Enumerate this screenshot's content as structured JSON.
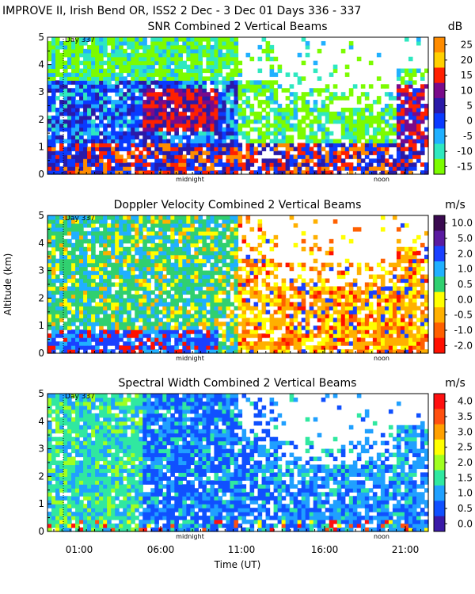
{
  "header": "IMPROVE II,  Irish Bend OR, ISS2    2 Dec -   3 Dec 01 Days 336 - 337",
  "chart_data": [
    {
      "type": "heatmap",
      "title": "SNR Combined 2 Vertical Beams",
      "units": "dB",
      "colorbar_ticks": [
        "25",
        "20",
        "15",
        "10",
        "5",
        "0",
        "-5",
        "-10",
        "-15"
      ],
      "colorbar_colors": [
        "#ff8c00",
        "#ffd000",
        "#ff2000",
        "#7a0a8a",
        "#2a1aa8",
        "#0a3aff",
        "#20b0ff",
        "#2ee8c0",
        "#7cfc00"
      ],
      "ylim": [
        0,
        5
      ],
      "yticks": [
        "0",
        "1",
        "2",
        "3",
        "4",
        "5"
      ],
      "marker_labels": {
        "day": "Day 337",
        "midnight": "midnight",
        "noon": "noon"
      }
    },
    {
      "type": "heatmap",
      "title": "Doppler Velocity Combined 2 Vertical Beams",
      "units": "m/s",
      "ylabel": "Altitude (km)",
      "colorbar_ticks": [
        "10.0",
        "5.0",
        "2.0",
        "1.0",
        "0.5",
        "0.0",
        "-0.5",
        "-1.0",
        "-2.0"
      ],
      "colorbar_colors": [
        "#3a0a50",
        "#5a1aa0",
        "#1a40ff",
        "#20b0ff",
        "#30d070",
        "#ffff00",
        "#ffb000",
        "#ff6000",
        "#ff1000"
      ],
      "ylim": [
        0,
        5
      ],
      "yticks": [
        "0",
        "1",
        "2",
        "3",
        "4",
        "5"
      ],
      "marker_labels": {
        "day": "Day 337",
        "midnight": "midnight",
        "noon": "noon"
      }
    },
    {
      "type": "heatmap",
      "title": "Spectral Width Combined 2 Vertical Beams",
      "units": "m/s",
      "colorbar_ticks": [
        "4.0",
        "3.5",
        "3.0",
        "2.5",
        "2.0",
        "1.5",
        "1.0",
        "0.5",
        "0.0"
      ],
      "colorbar_colors": [
        "#ff1010",
        "#ff5010",
        "#ffa000",
        "#ffff00",
        "#a0ff20",
        "#30e8a0",
        "#20a0ff",
        "#1050ff",
        "#3a1aa8"
      ],
      "ylim": [
        0,
        5
      ],
      "yticks": [
        "0",
        "1",
        "2",
        "3",
        "4",
        "5"
      ],
      "xlabel": "Time (UT)",
      "xticks": [
        "01:00",
        "06:00",
        "11:00",
        "16:00",
        "21:00"
      ],
      "marker_labels": {
        "day": "Day 337",
        "midnight": "midnight",
        "noon": "noon"
      }
    }
  ]
}
